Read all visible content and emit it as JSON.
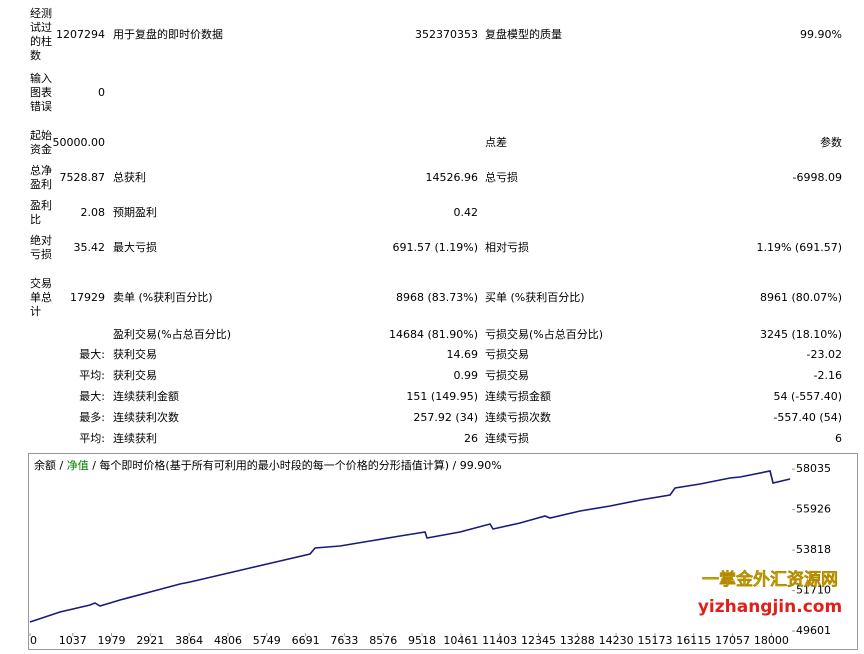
{
  "report": {
    "rows": [
      [
        "经测试过的柱数",
        "1207294",
        "用于复盘的即时价数据",
        "352370353",
        "复盘模型的质量",
        "99.90%"
      ],
      [
        "输入图表错误",
        "0",
        null,
        null,
        null,
        null
      ],
      [
        "起始资金",
        "50000.00",
        null,
        null,
        "点差",
        "参数"
      ],
      [
        "总净盈利",
        "7528.87",
        "总获利",
        "14526.96",
        "总亏损",
        "-6998.09"
      ],
      [
        "盈利比",
        "2.08",
        "预期盈利",
        "0.42",
        null,
        null
      ],
      [
        "绝对亏损",
        "35.42",
        "最大亏损",
        "691.57 (1.19%)",
        "相对亏损",
        "1.19% (691.57)"
      ],
      [
        "交易单总计",
        "17929",
        "卖单 (%获利百分比)",
        "8968 (83.73%)",
        "买单 (%获利百分比)",
        "8961 (80.07%)"
      ],
      [
        null,
        null,
        "盈利交易(%占总百分比)",
        "14684 (81.90%)",
        "亏损交易(%占总百分比)",
        "3245 (18.10%)"
      ],
      [
        null,
        "最大:",
        "获利交易",
        "14.69",
        "亏损交易",
        "-23.02"
      ],
      [
        null,
        "平均:",
        "获利交易",
        "0.99",
        "亏损交易",
        "-2.16"
      ],
      [
        null,
        "最大:",
        "连续获利金额",
        "151 (149.95)",
        "连续亏损金额",
        "54 (-557.40)"
      ],
      [
        null,
        "最多:",
        "连续获利次数",
        "257.92 (34)",
        "连续亏损次数",
        "-557.40 (54)"
      ],
      [
        null,
        "平均:",
        "连续获利",
        "26",
        "连续亏损",
        "6"
      ]
    ]
  },
  "chart_data": {
    "type": "line",
    "legend": {
      "balance": "余额",
      "separator": " / ",
      "equity": "净值",
      "model": "每个即时价格(基于所有可利用的最小时段的每一个价格的分形插值计算)",
      "quality": "99.90%"
    },
    "legend_colors": {
      "balance": "#000000",
      "equity": "#008000"
    },
    "x": [
      0,
      728,
      1457,
      1578,
      1700,
      2185,
      2914,
      3642,
      3885,
      4613,
      5342,
      6070,
      6798,
      6920,
      7527,
      8255,
      8984,
      9591,
      9639,
      10440,
      11169,
      11242,
      11897,
      12504,
      12626,
      13354,
      14082,
      14811,
      15539,
      15661,
      16268,
      16996,
      17239,
      17967,
      18040,
      18453
    ],
    "series": [
      {
        "name": "余额",
        "color": "#1a1a7a",
        "values": [
          50073,
          50594,
          50959,
          51063,
          50906,
          51219,
          51636,
          52052,
          52157,
          52521,
          52886,
          53250,
          53615,
          53928,
          54032,
          54292,
          54553,
          54761,
          54449,
          54761,
          55178,
          54917,
          55230,
          55595,
          55490,
          55855,
          56115,
          56428,
          56688,
          57053,
          57261,
          57574,
          57626,
          57939,
          57314,
          57522
        ]
      }
    ],
    "xlim": [
      0,
      18500
    ],
    "ylim": [
      49500,
      58720
    ],
    "xticks": [
      0,
      1037,
      1979,
      2921,
      3864,
      4806,
      5749,
      6691,
      7633,
      8576,
      9518,
      10461,
      11403,
      12345,
      13288,
      14230,
      15173,
      16115,
      17057,
      18000
    ],
    "yticks": [
      49601,
      51710,
      53818,
      55926,
      58035
    ],
    "grid": false
  },
  "watermark": {
    "name": "一掌金外汇资源网",
    "url": "yizhangjin.com"
  }
}
